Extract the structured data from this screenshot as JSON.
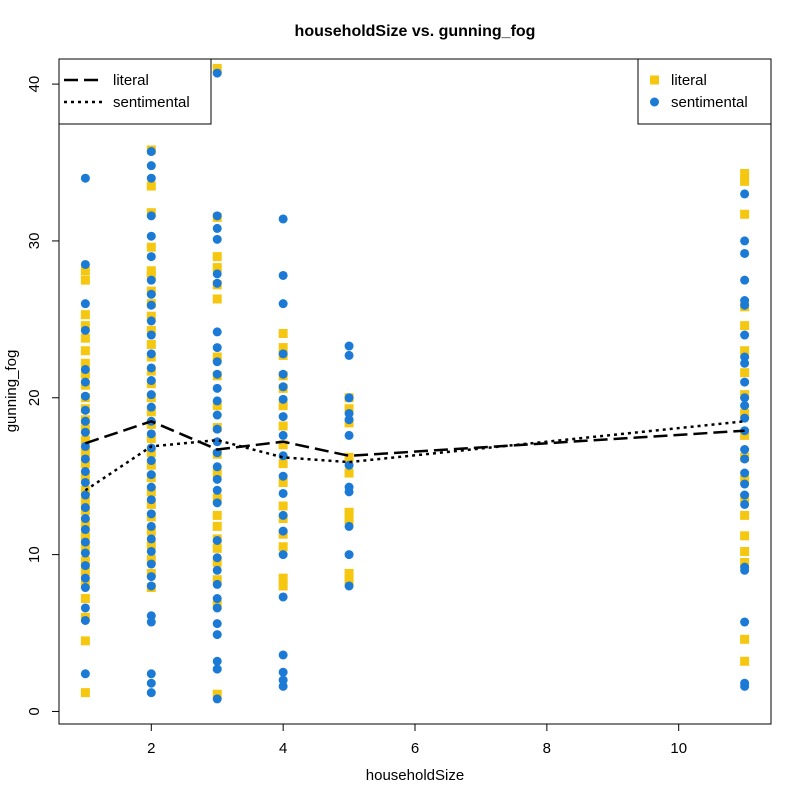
{
  "chart_data": {
    "type": "scatter",
    "title": "householdSize vs. gunning_fog",
    "xlabel": "householdSize",
    "ylabel": "gunning_fog",
    "xlim": [
      0.6,
      11.4
    ],
    "ylim": [
      -0.8,
      41.6
    ],
    "x_ticks": [
      2,
      4,
      6,
      8,
      10
    ],
    "y_ticks": [
      0,
      10,
      20,
      30,
      40
    ],
    "grid": false,
    "colors": {
      "literal": "#F5C710",
      "sentimental": "#1A7AD6",
      "line": "#000000"
    },
    "series": [
      {
        "name": "literal",
        "marker": "square",
        "points": [
          [
            1,
            1.2
          ],
          [
            1,
            4.5
          ],
          [
            1,
            6
          ],
          [
            1,
            7.2
          ],
          [
            1,
            8.1
          ],
          [
            1,
            8.9
          ],
          [
            1,
            9.6
          ],
          [
            1,
            10.5
          ],
          [
            1,
            11.2
          ],
          [
            1,
            12
          ],
          [
            1,
            12.8
          ],
          [
            1,
            13.4
          ],
          [
            1,
            14.1
          ],
          [
            1,
            15
          ],
          [
            1,
            15.8
          ],
          [
            1,
            16.5
          ],
          [
            1,
            17.3
          ],
          [
            1,
            18
          ],
          [
            1,
            18.6
          ],
          [
            1,
            19.3
          ],
          [
            1,
            20
          ],
          [
            1,
            20.8
          ],
          [
            1,
            21.5
          ],
          [
            1,
            22.2
          ],
          [
            1,
            23
          ],
          [
            1,
            23.8
          ],
          [
            1,
            24.6
          ],
          [
            1,
            25.3
          ],
          [
            1,
            27.5
          ],
          [
            1,
            28.1
          ],
          [
            2,
            7.9
          ],
          [
            2,
            8.8
          ],
          [
            2,
            9.7
          ],
          [
            2,
            10.6
          ],
          [
            2,
            11.5
          ],
          [
            2,
            12.4
          ],
          [
            2,
            13.2
          ],
          [
            2,
            14
          ],
          [
            2,
            14.9
          ],
          [
            2,
            15.7
          ],
          [
            2,
            16.5
          ],
          [
            2,
            17.4
          ],
          [
            2,
            18.3
          ],
          [
            2,
            19.1
          ],
          [
            2,
            20
          ],
          [
            2,
            20.9
          ],
          [
            2,
            21.7
          ],
          [
            2,
            22.6
          ],
          [
            2,
            23.4
          ],
          [
            2,
            24.3
          ],
          [
            2,
            25.2
          ],
          [
            2,
            26
          ],
          [
            2,
            26.8
          ],
          [
            2,
            27.8
          ],
          [
            2,
            28.1
          ],
          [
            2,
            29.6
          ],
          [
            2,
            31.8
          ],
          [
            2,
            33.5
          ],
          [
            2,
            35.8
          ],
          [
            3,
            1.1
          ],
          [
            3,
            6.8
          ],
          [
            3,
            8.4
          ],
          [
            3,
            9.5
          ],
          [
            3,
            10.4
          ],
          [
            3,
            11
          ],
          [
            3,
            11.8
          ],
          [
            3,
            12.5
          ],
          [
            3,
            13.6
          ],
          [
            3,
            15.2
          ],
          [
            3,
            16.4
          ],
          [
            3,
            18.1
          ],
          [
            3,
            19.5
          ],
          [
            3,
            21.4
          ],
          [
            3,
            22.6
          ],
          [
            3,
            26.3
          ],
          [
            3,
            27.2
          ],
          [
            3,
            28.3
          ],
          [
            3,
            29
          ],
          [
            3,
            31.5
          ],
          [
            3,
            41
          ],
          [
            4,
            8
          ],
          [
            4,
            8.5
          ],
          [
            4,
            10.5
          ],
          [
            4,
            11.3
          ],
          [
            4,
            12.3
          ],
          [
            4,
            13.1
          ],
          [
            4,
            14.6
          ],
          [
            4,
            15.8
          ],
          [
            4,
            17
          ],
          [
            4,
            18.2
          ],
          [
            4,
            19.5
          ],
          [
            4,
            20.6
          ],
          [
            4,
            21.4
          ],
          [
            4,
            22.7
          ],
          [
            4,
            23.2
          ],
          [
            4,
            24.1
          ],
          [
            5,
            8.3
          ],
          [
            5,
            8.8
          ],
          [
            5,
            12.2
          ],
          [
            5,
            12.7
          ],
          [
            5,
            15.2
          ],
          [
            5,
            16.2
          ],
          [
            5,
            18.4
          ],
          [
            5,
            19.3
          ],
          [
            5,
            20
          ],
          [
            11,
            3.2
          ],
          [
            11,
            4.6
          ],
          [
            11,
            9.5
          ],
          [
            11,
            10.2
          ],
          [
            11,
            11.2
          ],
          [
            11,
            12.5
          ],
          [
            11,
            13.6
          ],
          [
            11,
            14.8
          ],
          [
            11,
            16.2
          ],
          [
            11,
            17.6
          ],
          [
            11,
            19
          ],
          [
            11,
            20.2
          ],
          [
            11,
            21.6
          ],
          [
            11,
            23
          ],
          [
            11,
            24.6
          ],
          [
            11,
            25.8
          ],
          [
            11,
            31.7
          ],
          [
            11,
            33.8
          ],
          [
            11,
            34.3
          ]
        ]
      },
      {
        "name": "sentimental",
        "marker": "circle",
        "points": [
          [
            1,
            2.4
          ],
          [
            1,
            5.8
          ],
          [
            1,
            6.6
          ],
          [
            1,
            7.9
          ],
          [
            1,
            8.5
          ],
          [
            1,
            9.3
          ],
          [
            1,
            10.1
          ],
          [
            1,
            10.8
          ],
          [
            1,
            11.6
          ],
          [
            1,
            12.3
          ],
          [
            1,
            13
          ],
          [
            1,
            13.8
          ],
          [
            1,
            14.6
          ],
          [
            1,
            15.3
          ],
          [
            1,
            16.1
          ],
          [
            1,
            16.9
          ],
          [
            1,
            17.8
          ],
          [
            1,
            18.5
          ],
          [
            1,
            19.2
          ],
          [
            1,
            20.1
          ],
          [
            1,
            21
          ],
          [
            1,
            21.8
          ],
          [
            1,
            24.3
          ],
          [
            1,
            26
          ],
          [
            1,
            28.5
          ],
          [
            1,
            34
          ],
          [
            2,
            1.2
          ],
          [
            2,
            1.8
          ],
          [
            2,
            2.4
          ],
          [
            2,
            5.7
          ],
          [
            2,
            6.1
          ],
          [
            2,
            8
          ],
          [
            2,
            8.6
          ],
          [
            2,
            9.4
          ],
          [
            2,
            10.2
          ],
          [
            2,
            11
          ],
          [
            2,
            11.8
          ],
          [
            2,
            12.6
          ],
          [
            2,
            13.5
          ],
          [
            2,
            14.3
          ],
          [
            2,
            15.1
          ],
          [
            2,
            16
          ],
          [
            2,
            16.8
          ],
          [
            2,
            17.7
          ],
          [
            2,
            18.5
          ],
          [
            2,
            19.4
          ],
          [
            2,
            20.2
          ],
          [
            2,
            21.1
          ],
          [
            2,
            21.9
          ],
          [
            2,
            22.8
          ],
          [
            2,
            24
          ],
          [
            2,
            24.9
          ],
          [
            2,
            25.9
          ],
          [
            2,
            26.6
          ],
          [
            2,
            27.5
          ],
          [
            2,
            29
          ],
          [
            2,
            30.3
          ],
          [
            2,
            31.6
          ],
          [
            2,
            34
          ],
          [
            2,
            34.8
          ],
          [
            2,
            35.7
          ],
          [
            3,
            0.8
          ],
          [
            3,
            2.7
          ],
          [
            3,
            3.2
          ],
          [
            3,
            4.9
          ],
          [
            3,
            5.6
          ],
          [
            3,
            6.6
          ],
          [
            3,
            7.2
          ],
          [
            3,
            8.1
          ],
          [
            3,
            9
          ],
          [
            3,
            9.8
          ],
          [
            3,
            10.9
          ],
          [
            3,
            13.3
          ],
          [
            3,
            14.1
          ],
          [
            3,
            14.8
          ],
          [
            3,
            15.6
          ],
          [
            3,
            16.5
          ],
          [
            3,
            17.2
          ],
          [
            3,
            18
          ],
          [
            3,
            18.9
          ],
          [
            3,
            19.8
          ],
          [
            3,
            20.6
          ],
          [
            3,
            21.5
          ],
          [
            3,
            22.3
          ],
          [
            3,
            23.2
          ],
          [
            3,
            24.2
          ],
          [
            3,
            27.3
          ],
          [
            3,
            27.9
          ],
          [
            3,
            30.1
          ],
          [
            3,
            30.8
          ],
          [
            3,
            31.6
          ],
          [
            3,
            40.7
          ],
          [
            4,
            1.6
          ],
          [
            4,
            2
          ],
          [
            4,
            2.5
          ],
          [
            4,
            3.6
          ],
          [
            4,
            7.3
          ],
          [
            4,
            10
          ],
          [
            4,
            11.5
          ],
          [
            4,
            12.5
          ],
          [
            4,
            13.9
          ],
          [
            4,
            15
          ],
          [
            4,
            16.3
          ],
          [
            4,
            17.6
          ],
          [
            4,
            18.8
          ],
          [
            4,
            19.9
          ],
          [
            4,
            20.7
          ],
          [
            4,
            21.5
          ],
          [
            4,
            22.8
          ],
          [
            4,
            26
          ],
          [
            4,
            27.8
          ],
          [
            4,
            31.4
          ],
          [
            5,
            8
          ],
          [
            5,
            10
          ],
          [
            5,
            11.8
          ],
          [
            5,
            14
          ],
          [
            5,
            14.3
          ],
          [
            5,
            15.7
          ],
          [
            5,
            17.6
          ],
          [
            5,
            18.6
          ],
          [
            5,
            19
          ],
          [
            5,
            20
          ],
          [
            5,
            22.7
          ],
          [
            5,
            23.3
          ],
          [
            11,
            1.6
          ],
          [
            11,
            1.8
          ],
          [
            11,
            5.7
          ],
          [
            11,
            9
          ],
          [
            11,
            9.2
          ],
          [
            11,
            13.2
          ],
          [
            11,
            13.8
          ],
          [
            11,
            14.5
          ],
          [
            11,
            15.2
          ],
          [
            11,
            16.1
          ],
          [
            11,
            16.7
          ],
          [
            11,
            17.9
          ],
          [
            11,
            18.7
          ],
          [
            11,
            19.5
          ],
          [
            11,
            20
          ],
          [
            11,
            21
          ],
          [
            11,
            22.2
          ],
          [
            11,
            22.6
          ],
          [
            11,
            24
          ],
          [
            11,
            25.9
          ],
          [
            11,
            26.2
          ],
          [
            11,
            27.5
          ],
          [
            11,
            29.2
          ],
          [
            11,
            30
          ],
          [
            11,
            33
          ]
        ]
      }
    ],
    "trend_lines": [
      {
        "name": "literal",
        "style": "dashed",
        "x": [
          1,
          2,
          3,
          4,
          5,
          11
        ],
        "y": [
          17.1,
          18.5,
          16.7,
          17.2,
          16.3,
          17.9
        ]
      },
      {
        "name": "sentimental",
        "style": "dotted",
        "x": [
          1,
          2,
          3,
          4,
          5,
          11
        ],
        "y": [
          14.1,
          16.9,
          17.3,
          16.2,
          15.9,
          18.5
        ]
      }
    ],
    "legends": [
      {
        "placement": "top-left",
        "type": "lines",
        "entries": [
          {
            "label": "literal",
            "style": "dashed"
          },
          {
            "label": "sentimental",
            "style": "dotted"
          }
        ]
      },
      {
        "placement": "top-right",
        "type": "markers",
        "entries": [
          {
            "label": "literal",
            "marker": "square"
          },
          {
            "label": "sentimental",
            "marker": "circle"
          }
        ]
      }
    ]
  }
}
